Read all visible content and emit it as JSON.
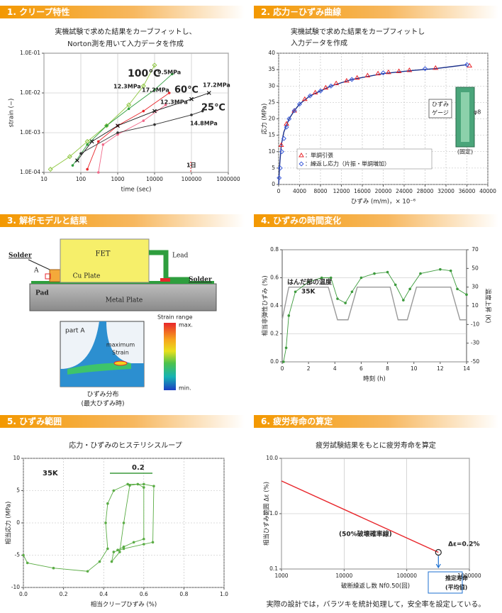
{
  "panels": [
    "1. クリープ特性",
    "2. 応力－ひずみ曲線",
    "3. 解析モデルと結果",
    "4. ひずみの時間変化",
    "5. ひずみ範囲",
    "6. 疲労寿命の算定"
  ],
  "diagram": {
    "fet": "FET",
    "lead": "Lead",
    "solder_left": "Solder",
    "solder_right": "Solder",
    "point": "A",
    "cu_plate": "Cu Plate",
    "pad": "Pad",
    "metal_plate": "Metal Plate",
    "inset_label": "part A",
    "max_strain": [
      "maximum",
      "Strain"
    ],
    "colorbar_title": "Strain range",
    "colorbar_max": "max.",
    "colorbar_min": "min.",
    "caption": [
      "ひずみ分布",
      "(最大ひずみ時)"
    ]
  },
  "footer": "実際の設計では，バラツキを統計処理して，安全率を設定している。",
  "chart_data": [
    {
      "type": "line",
      "subtitle": [
        "実機試験で求めた結果をカーブフィットし、",
        "Norton測を用いて入力データを作成"
      ],
      "xlabel": "time (sec)",
      "ylabel": "strain (−)",
      "xlog": true,
      "ylog": true,
      "grid": "both",
      "grid_style": "solid",
      "xlim": [
        10,
        1000000
      ],
      "xticks": [
        10,
        100,
        1000,
        10000,
        100000,
        1000000
      ],
      "ylim": [
        0.0001,
        0.1
      ],
      "yticks": [
        {
          "value": 0.0001,
          "label": "1.0E-04"
        },
        {
          "value": 0.001,
          "label": "1.0E-03"
        },
        {
          "value": 0.01,
          "label": "1.0E-02"
        },
        {
          "value": 0.1,
          "label": "1.0E-01"
        }
      ],
      "series": [
        {
          "color": "#8dc63f",
          "marker": "diamond",
          "x": [
            15,
            50,
            150,
            500,
            2000,
            5000,
            10000
          ],
          "values": [
            0.00012,
            0.00025,
            0.0006,
            0.0015,
            0.005,
            0.015,
            0.05
          ]
        },
        {
          "color": "#2e9e3e",
          "marker": "circle",
          "x": [
            60,
            150,
            500,
            2000,
            10000,
            30000
          ],
          "values": [
            0.00015,
            0.0005,
            0.0015,
            0.004,
            0.012,
            0.03
          ]
        },
        {
          "color": "#e8262b",
          "marker": "circle",
          "x": [
            150,
            300,
            1000,
            5000,
            25000
          ],
          "values": [
            0.00012,
            0.0006,
            0.0015,
            0.0035,
            0.01
          ]
        },
        {
          "color": "#f06a8a",
          "marker": "circle",
          "x": [
            300,
            400,
            1000,
            5000,
            20000
          ],
          "values": [
            0.0001,
            0.0005,
            0.0009,
            0.002,
            0.005
          ]
        },
        {
          "color": "#111111",
          "marker": "cross",
          "x": [
            80,
            200,
            1000,
            10000,
            100000,
            300000
          ],
          "values": [
            0.0002,
            0.0006,
            0.0015,
            0.0035,
            0.007,
            0.01
          ]
        },
        {
          "color": "#333333",
          "marker": "circle",
          "x": [
            100,
            1000,
            10000,
            100000,
            200000
          ],
          "values": [
            0.0003,
            0.001,
            0.0016,
            0.0028,
            0.0035
          ]
        }
      ],
      "annotations": [
        {
          "text": "100℃",
          "color": "#2e9e3e"
        },
        {
          "text": "9.5MPa",
          "color": "#2e9e3e"
        },
        {
          "text": "12.3MPa",
          "color": "#2e9e3e"
        },
        {
          "text": "17.2MPa",
          "color": "#e8262b"
        },
        {
          "text": "60℃",
          "color": "#e8262b"
        },
        {
          "text": "12.3MPa",
          "color": "#e8262b"
        },
        {
          "text": "17.2MPa",
          "color": "#111111"
        },
        {
          "text": "25℃",
          "color": "#111111"
        },
        {
          "text": "14.8MPa",
          "color": "#111111"
        },
        {
          "text": "1日",
          "color": "#e8262b"
        }
      ]
    },
    {
      "type": "line",
      "subtitle": [
        "実機試験で求めた結果をカーブフィットし",
        "入力データを作成"
      ],
      "xlabel": "ひずみ (m/m)，× 10⁻⁶",
      "ylabel": "応力 (MPa)",
      "grid": "both",
      "grid_style": "dashed",
      "xlim": [
        0,
        40000
      ],
      "xticks": [
        0,
        4000,
        8000,
        12000,
        16000,
        20000,
        24000,
        28000,
        32000,
        36000,
        40000
      ],
      "ylim": [
        0,
        40
      ],
      "yticks": [
        0,
        5,
        10,
        15,
        20,
        25,
        30,
        35,
        40
      ],
      "series": [
        {
          "color": "#1a2f8a",
          "marker": "none",
          "x": [
            0,
            200,
            500,
            1000,
            2000,
            3000,
            4000,
            6000,
            8000,
            10000,
            14000,
            20000,
            26000,
            30000,
            36000
          ],
          "values": [
            0,
            6,
            12,
            16,
            20,
            22.5,
            24.5,
            27,
            28.5,
            30,
            32,
            33.8,
            34.8,
            35.3,
            36.5
          ]
        },
        {
          "name": "：単調引張",
          "color": "#e8262b",
          "marker": "triangle",
          "line": false,
          "x": [
            500,
            1500,
            3000,
            5000,
            7000,
            9000,
            11000,
            13000,
            15000,
            17000,
            19000,
            21000,
            23000,
            25000,
            30000,
            36500
          ],
          "values": [
            12,
            18.5,
            22.5,
            26,
            28,
            29.5,
            30.8,
            31.6,
            32.5,
            33.2,
            33.8,
            34.2,
            34.5,
            34.8,
            35.5,
            36.2
          ]
        },
        {
          "name": "：繰返し応力（片振・単調増加）",
          "color": "#3b5bdb",
          "marker": "diamond",
          "line": false,
          "x": [
            100,
            300,
            600,
            1000,
            1500,
            2000,
            3000,
            4000,
            6000,
            8000,
            10000,
            14000,
            20000,
            28000,
            36000
          ],
          "values": [
            2,
            5,
            10,
            14,
            17.5,
            20,
            22.5,
            24.5,
            27,
            28.5,
            30,
            32,
            34,
            35.3,
            36.5
          ]
        }
      ],
      "inset_labels": [
        "ひずみ",
        "ゲージ",
        "φ8",
        "(固定)"
      ]
    },
    {
      "type": "line",
      "xlabel": "時刻 (h)",
      "ylabel": "相当非弾性ひずみ (%)",
      "y2label": "温度上昇 (K)",
      "grid": "y",
      "grid_style": "solid",
      "xlim": [
        0,
        14
      ],
      "xticks": [
        0,
        2,
        4,
        6,
        8,
        10,
        12,
        14
      ],
      "ylim": [
        0,
        0.8
      ],
      "yticks": [
        {
          "value": 0,
          "label": "0.0"
        },
        0.2,
        0.4,
        0.6,
        0.8
      ],
      "y2lim": [
        -50,
        70
      ],
      "y2ticks": [
        -50,
        -30,
        -10,
        10,
        30,
        50,
        70
      ],
      "series": [
        {
          "color": "#9a9a9a",
          "marker": "none",
          "axis": "y2",
          "x": [
            0,
            0.5,
            3.5,
            4.2,
            5,
            5.7,
            8.2,
            8.8,
            9.5,
            10.2,
            12.8,
            13.5,
            14
          ],
          "values": [
            -5,
            30,
            30,
            -5,
            -5,
            30,
            30,
            -5,
            -5,
            30,
            30,
            -5,
            -5
          ]
        },
        {
          "color": "#3c9a3c",
          "marker": "circle",
          "x": [
            0.1,
            0.3,
            0.5,
            1,
            2,
            3,
            3.7,
            4.2,
            4.8,
            5.3,
            6,
            7,
            8,
            8.6,
            9.2,
            9.7,
            10.5,
            12,
            12.8,
            13.3,
            14
          ],
          "values": [
            0,
            0.1,
            0.33,
            0.5,
            0.57,
            0.6,
            0.6,
            0.45,
            0.42,
            0.5,
            0.6,
            0.63,
            0.64,
            0.55,
            0.44,
            0.52,
            0.63,
            0.66,
            0.65,
            0.52,
            0.48
          ]
        }
      ],
      "annotations": [
        {
          "text": "はんだ部の温度",
          "color": "#222222"
        },
        {
          "text": "35K",
          "color": "#222222"
        }
      ]
    },
    {
      "type": "line",
      "subtitle": [
        "応力・ひずみのヒステリシスループ"
      ],
      "xlabel": "相当クリープひずみ (%)",
      "ylabel": "相当応力 (MPa)",
      "grid": "both",
      "grid_style": "dashed",
      "xlim": [
        0,
        1
      ],
      "xticks": [
        {
          "value": 0,
          "label": "0.0"
        },
        0.2,
        0.4,
        0.6,
        0.8,
        {
          "value": 1,
          "label": "1.0"
        }
      ],
      "ylim": [
        -10,
        10
      ],
      "yticks": [
        -10,
        -5,
        0,
        5,
        10
      ],
      "series": [
        {
          "color": "#5aac44",
          "marker": "circle",
          "x": [
            0,
            0.02,
            0.15,
            0.32,
            0.38,
            0.42,
            0.41,
            0.42,
            0.45,
            0.52,
            0.6,
            0.65,
            0.645,
            0.6,
            0.5,
            0.45,
            0.44,
            0.48,
            0.5,
            0.53,
            0.57,
            0.6,
            0.6,
            0.55,
            0.5,
            0.47
          ],
          "values": [
            -5,
            -6.2,
            -7,
            -7.5,
            -6,
            -4,
            0,
            3,
            5,
            6,
            6,
            5.7,
            -3,
            -3.3,
            -4,
            -4.5,
            -6,
            -4.5,
            0,
            5.8,
            6,
            5.5,
            -2.5,
            -3,
            -3.7,
            -4.2
          ]
        }
      ],
      "annotations": [
        {
          "text": "35K",
          "color": "#222222"
        },
        {
          "text": "0.2",
          "color": "#3c9a3c"
        }
      ]
    },
    {
      "type": "line",
      "subtitle": [
        "疲労試験結果をもとに疲労寿命を算定"
      ],
      "xlabel": "破断繰返し数 Nf0.50(回)",
      "ylabel": "相当ひずみ範囲 Δε (%)",
      "xlog": true,
      "ylog": true,
      "grid": "both",
      "grid_style": "solid",
      "xlim": [
        1000,
        1000000
      ],
      "xticks": [
        1000,
        10000,
        100000,
        1000000
      ],
      "ylim": [
        0.1,
        10
      ],
      "yticks": [
        0.1,
        {
          "value": 1,
          "label": "1.0"
        },
        {
          "value": 10,
          "label": "10.0"
        }
      ],
      "series": [
        {
          "color": "#e8262b",
          "marker": "ring-end",
          "x": [
            1000,
            320000
          ],
          "values": [
            3.9,
            0.2
          ]
        }
      ],
      "annotations": [
        {
          "text": "(50%破壊確率線)",
          "color": "#222222"
        },
        {
          "text": "Δε=0.2%",
          "color": "#222222"
        },
        {
          "text": "推定寿命",
          "color": "#222222"
        },
        {
          "text": "(平均値)",
          "color": "#222222"
        }
      ]
    }
  ]
}
